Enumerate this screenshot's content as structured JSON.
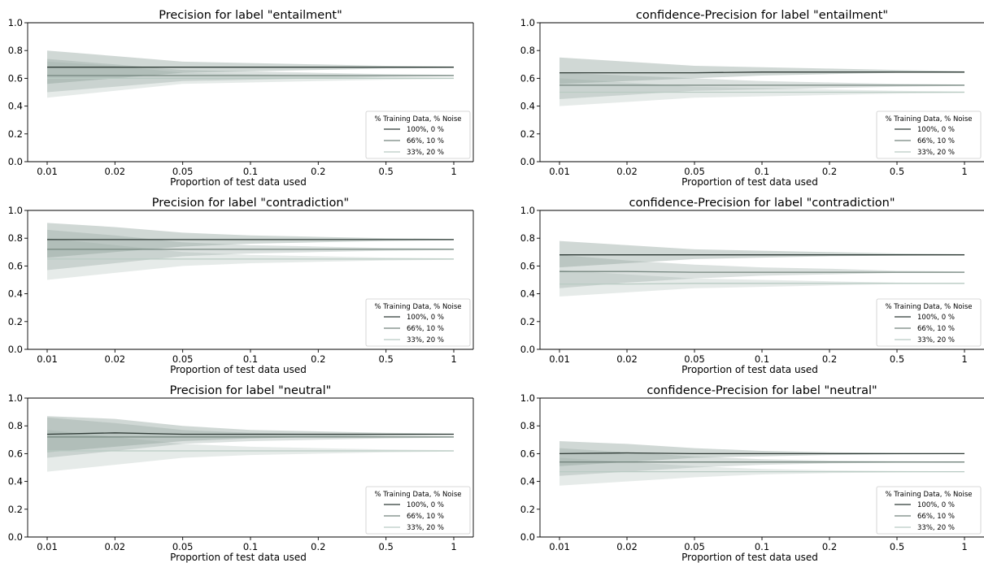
{
  "legend_title": "% Training Data, % Noise",
  "colors": {
    "line_100": "#2f3b36",
    "line_66": "#74857e",
    "line_33": "#b9cbc3",
    "band": "#8fa39a",
    "axis": "#000000"
  },
  "chart_data": [
    {
      "type": "line",
      "title": "Precision for label \"entailment\"",
      "xlabel": "Proportion of test data used",
      "ylabel": "",
      "x": [
        "0.01",
        "0.02",
        "0.05",
        "0.1",
        "0.2",
        "0.5",
        "1"
      ],
      "ylim": [
        0,
        1
      ],
      "yticks": [
        "0.0",
        "0.2",
        "0.4",
        "0.6",
        "0.8",
        "1.0"
      ],
      "legend_placement": "lower-right",
      "series": [
        {
          "name": "100%, 0 %",
          "values": [
            0.68,
            0.68,
            0.68,
            0.68,
            0.68,
            0.68,
            0.68
          ],
          "lower": [
            0.56,
            0.6,
            0.64,
            0.65,
            0.66,
            0.67,
            0.675
          ],
          "upper": [
            0.8,
            0.76,
            0.72,
            0.71,
            0.7,
            0.69,
            0.685
          ]
        },
        {
          "name": "66%, 10 %",
          "values": [
            0.62,
            0.62,
            0.62,
            0.62,
            0.62,
            0.62,
            0.62
          ],
          "lower": [
            0.5,
            0.54,
            0.58,
            0.59,
            0.6,
            0.61,
            0.615
          ],
          "upper": [
            0.74,
            0.7,
            0.66,
            0.65,
            0.64,
            0.63,
            0.625
          ]
        },
        {
          "name": "33%, 20 %",
          "values": [
            0.6,
            0.6,
            0.6,
            0.6,
            0.6,
            0.6,
            0.6
          ],
          "lower": [
            0.46,
            0.51,
            0.56,
            0.57,
            0.58,
            0.59,
            0.595
          ],
          "upper": [
            0.72,
            0.69,
            0.64,
            0.63,
            0.62,
            0.61,
            0.605
          ]
        }
      ]
    },
    {
      "type": "line",
      "title": "confidence-Precision for label \"entailment\"",
      "xlabel": "Proportion of test data used",
      "ylabel": "",
      "x": [
        "0.01",
        "0.02",
        "0.05",
        "0.1",
        "0.2",
        "0.5",
        "1"
      ],
      "ylim": [
        0,
        1
      ],
      "yticks": [
        "0.0",
        "0.2",
        "0.4",
        "0.6",
        "0.8",
        "1.0"
      ],
      "legend_placement": "lower-right",
      "series": [
        {
          "name": "100%, 0 %",
          "values": [
            0.64,
            0.64,
            0.64,
            0.645,
            0.645,
            0.645,
            0.645
          ],
          "lower": [
            0.56,
            0.58,
            0.6,
            0.62,
            0.63,
            0.64,
            0.64
          ],
          "upper": [
            0.75,
            0.72,
            0.69,
            0.68,
            0.67,
            0.66,
            0.65
          ]
        },
        {
          "name": "66%, 10 %",
          "values": [
            0.55,
            0.55,
            0.55,
            0.55,
            0.55,
            0.55,
            0.55
          ],
          "lower": [
            0.45,
            0.48,
            0.51,
            0.52,
            0.53,
            0.54,
            0.545
          ],
          "upper": [
            0.64,
            0.62,
            0.6,
            0.58,
            0.57,
            0.56,
            0.555
          ]
        },
        {
          "name": "33%, 20 %",
          "values": [
            0.5,
            0.5,
            0.5,
            0.5,
            0.5,
            0.5,
            0.5
          ],
          "lower": [
            0.4,
            0.43,
            0.46,
            0.47,
            0.48,
            0.49,
            0.495
          ],
          "upper": [
            0.6,
            0.57,
            0.54,
            0.53,
            0.52,
            0.51,
            0.505
          ]
        }
      ]
    },
    {
      "type": "line",
      "title": "Precision for label \"contradiction\"",
      "xlabel": "Proportion of test data used",
      "ylabel": "",
      "x": [
        "0.01",
        "0.02",
        "0.05",
        "0.1",
        "0.2",
        "0.5",
        "1"
      ],
      "ylim": [
        0,
        1
      ],
      "yticks": [
        "0.0",
        "0.2",
        "0.4",
        "0.6",
        "0.8",
        "1.0"
      ],
      "legend_placement": "lower-right",
      "series": [
        {
          "name": "100%, 0 %",
          "values": [
            0.79,
            0.79,
            0.79,
            0.79,
            0.79,
            0.79,
            0.79
          ],
          "lower": [
            0.66,
            0.7,
            0.74,
            0.76,
            0.77,
            0.78,
            0.785
          ],
          "upper": [
            0.91,
            0.88,
            0.84,
            0.82,
            0.81,
            0.8,
            0.795
          ]
        },
        {
          "name": "66%, 10 %",
          "values": [
            0.72,
            0.72,
            0.72,
            0.72,
            0.72,
            0.72,
            0.72
          ],
          "lower": [
            0.57,
            0.62,
            0.67,
            0.69,
            0.7,
            0.71,
            0.715
          ],
          "upper": [
            0.86,
            0.82,
            0.77,
            0.75,
            0.74,
            0.73,
            0.725
          ]
        },
        {
          "name": "33%, 20 %",
          "values": [
            0.65,
            0.65,
            0.65,
            0.65,
            0.65,
            0.65,
            0.65
          ],
          "lower": [
            0.5,
            0.55,
            0.6,
            0.62,
            0.63,
            0.64,
            0.645
          ],
          "upper": [
            0.8,
            0.75,
            0.7,
            0.68,
            0.67,
            0.66,
            0.655
          ]
        }
      ]
    },
    {
      "type": "line",
      "title": "confidence-Precision for label \"contradiction\"",
      "xlabel": "Proportion of test data used",
      "ylabel": "",
      "x": [
        "0.01",
        "0.02",
        "0.05",
        "0.1",
        "0.2",
        "0.5",
        "1"
      ],
      "ylim": [
        0,
        1
      ],
      "yticks": [
        "0.0",
        "0.2",
        "0.4",
        "0.6",
        "0.8",
        "1.0"
      ],
      "legend_placement": "lower-right",
      "series": [
        {
          "name": "100%, 0 %",
          "values": [
            0.68,
            0.68,
            0.68,
            0.68,
            0.68,
            0.68,
            0.68
          ],
          "lower": [
            0.59,
            0.62,
            0.65,
            0.66,
            0.67,
            0.675,
            0.678
          ],
          "upper": [
            0.78,
            0.75,
            0.72,
            0.71,
            0.7,
            0.69,
            0.685
          ]
        },
        {
          "name": "66%, 10 %",
          "values": [
            0.56,
            0.56,
            0.555,
            0.555,
            0.555,
            0.555,
            0.555
          ],
          "lower": [
            0.44,
            0.48,
            0.51,
            0.53,
            0.54,
            0.55,
            0.552
          ],
          "upper": [
            0.68,
            0.64,
            0.61,
            0.59,
            0.58,
            0.565,
            0.56
          ]
        },
        {
          "name": "33%, 20 %",
          "values": [
            0.47,
            0.47,
            0.475,
            0.475,
            0.475,
            0.475,
            0.475
          ],
          "lower": [
            0.38,
            0.41,
            0.44,
            0.45,
            0.46,
            0.47,
            0.472
          ],
          "upper": [
            0.57,
            0.54,
            0.51,
            0.5,
            0.49,
            0.48,
            0.478
          ]
        }
      ]
    },
    {
      "type": "line",
      "title": "Precision for label \"neutral\"",
      "xlabel": "Proportion of test data used",
      "ylabel": "",
      "x": [
        "0.01",
        "0.02",
        "0.05",
        "0.1",
        "0.2",
        "0.5",
        "1"
      ],
      "ylim": [
        0,
        1
      ],
      "yticks": [
        "0.0",
        "0.2",
        "0.4",
        "0.6",
        "0.8",
        "1.0"
      ],
      "legend_placement": "lower-right",
      "series": [
        {
          "name": "100%, 0 %",
          "values": [
            0.74,
            0.75,
            0.74,
            0.74,
            0.74,
            0.74,
            0.74
          ],
          "lower": [
            0.61,
            0.65,
            0.69,
            0.71,
            0.72,
            0.73,
            0.735
          ],
          "upper": [
            0.87,
            0.85,
            0.8,
            0.77,
            0.76,
            0.75,
            0.745
          ]
        },
        {
          "name": "66%, 10 %",
          "values": [
            0.72,
            0.72,
            0.72,
            0.72,
            0.72,
            0.72,
            0.72
          ],
          "lower": [
            0.57,
            0.62,
            0.67,
            0.69,
            0.7,
            0.71,
            0.715
          ],
          "upper": [
            0.86,
            0.82,
            0.77,
            0.75,
            0.74,
            0.73,
            0.725
          ]
        },
        {
          "name": "33%, 20 %",
          "values": [
            0.62,
            0.62,
            0.62,
            0.62,
            0.62,
            0.62,
            0.62
          ],
          "lower": [
            0.47,
            0.52,
            0.57,
            0.59,
            0.6,
            0.61,
            0.615
          ],
          "upper": [
            0.77,
            0.72,
            0.67,
            0.65,
            0.64,
            0.63,
            0.625
          ]
        }
      ]
    },
    {
      "type": "line",
      "title": "confidence-Precision for label \"neutral\"",
      "xlabel": "Proportion of test data used",
      "ylabel": "",
      "x": [
        "0.01",
        "0.02",
        "0.05",
        "0.1",
        "0.2",
        "0.5",
        "1"
      ],
      "ylim": [
        0,
        1
      ],
      "yticks": [
        "0.0",
        "0.2",
        "0.4",
        "0.6",
        "0.8",
        "1.0"
      ],
      "legend_placement": "lower-right",
      "series": [
        {
          "name": "100%, 0 %",
          "values": [
            0.6,
            0.605,
            0.6,
            0.6,
            0.6,
            0.6,
            0.6
          ],
          "lower": [
            0.51,
            0.54,
            0.57,
            0.58,
            0.59,
            0.595,
            0.597
          ],
          "upper": [
            0.69,
            0.67,
            0.64,
            0.62,
            0.61,
            0.605,
            0.603
          ]
        },
        {
          "name": "66%, 10 %",
          "values": [
            0.54,
            0.54,
            0.54,
            0.54,
            0.54,
            0.54,
            0.54
          ],
          "lower": [
            0.44,
            0.47,
            0.5,
            0.52,
            0.53,
            0.535,
            0.537
          ],
          "upper": [
            0.64,
            0.61,
            0.58,
            0.56,
            0.55,
            0.545,
            0.543
          ]
        },
        {
          "name": "33%, 20 %",
          "values": [
            0.47,
            0.47,
            0.47,
            0.47,
            0.47,
            0.47,
            0.47
          ],
          "lower": [
            0.37,
            0.4,
            0.43,
            0.45,
            0.46,
            0.465,
            0.467
          ],
          "upper": [
            0.57,
            0.54,
            0.51,
            0.49,
            0.48,
            0.475,
            0.473
          ]
        }
      ]
    }
  ]
}
